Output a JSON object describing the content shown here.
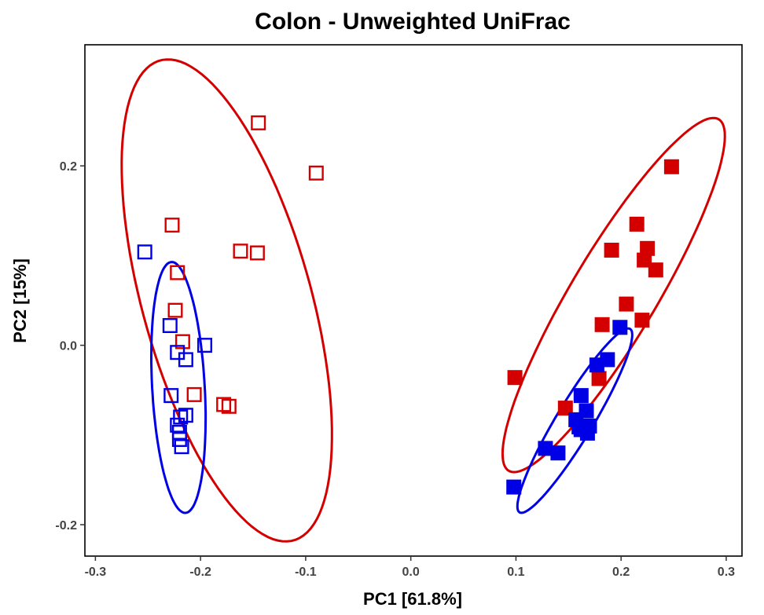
{
  "chart_data": {
    "type": "scatter",
    "title": "Colon - Unweighted UniFrac",
    "xlabel": "PC1  [61.8%]",
    "ylabel": "PC2  [15%]",
    "xlim": [
      -0.31,
      0.315
    ],
    "ylim": [
      -0.235,
      0.335
    ],
    "x_ticks": [
      -0.3,
      -0.2,
      -0.1,
      0.0,
      0.1,
      0.2,
      0.3
    ],
    "x_tick_labels": [
      "-0.3",
      "-0.2",
      "-0.1",
      "0.0",
      "0.1",
      "0.2",
      "0.3"
    ],
    "y_ticks": [
      -0.2,
      0.0,
      0.2
    ],
    "y_tick_labels": [
      "-0.2",
      "0.0",
      "0.2"
    ],
    "grid": false,
    "legend": "none",
    "colors": {
      "red": "#d40000",
      "blue": "#0000e6"
    },
    "series": [
      {
        "color": "#d40000",
        "marker": "open-square",
        "x": [
          -0.145,
          -0.09,
          -0.227,
          -0.162,
          -0.146,
          -0.222,
          -0.224,
          -0.217,
          -0.206,
          -0.178,
          -0.173
        ],
        "y": [
          0.248,
          0.192,
          0.134,
          0.105,
          0.103,
          0.081,
          0.039,
          0.004,
          -0.055,
          -0.066,
          -0.068
        ]
      },
      {
        "color": "#0000e6",
        "marker": "open-square",
        "x": [
          -0.253,
          -0.229,
          -0.222,
          -0.214,
          -0.196,
          -0.228,
          -0.214,
          -0.219,
          -0.222,
          -0.22,
          -0.22,
          -0.218
        ],
        "y": [
          0.104,
          0.022,
          -0.008,
          -0.016,
          0.0,
          -0.056,
          -0.078,
          -0.08,
          -0.089,
          -0.097,
          -0.105,
          -0.113
        ]
      },
      {
        "color": "#d40000",
        "marker": "filled-square",
        "x": [
          0.248,
          0.215,
          0.191,
          0.225,
          0.222,
          0.233,
          0.205,
          0.22,
          0.182,
          0.179,
          0.099,
          0.147
        ],
        "y": [
          0.199,
          0.135,
          0.106,
          0.108,
          0.095,
          0.084,
          0.046,
          0.028,
          0.023,
          -0.037,
          -0.036,
          -0.07
        ]
      },
      {
        "color": "#0000e6",
        "marker": "filled-square",
        "x": [
          0.199,
          0.187,
          0.177,
          0.162,
          0.167,
          0.157,
          0.17,
          0.16,
          0.162,
          0.168,
          0.128,
          0.14,
          0.098
        ],
        "y": [
          0.02,
          -0.016,
          -0.022,
          -0.056,
          -0.073,
          -0.083,
          -0.09,
          -0.091,
          -0.094,
          -0.098,
          -0.115,
          -0.12,
          -0.158
        ]
      }
    ],
    "ellipses": [
      {
        "color": "#d40000",
        "cx": -0.175,
        "cy": 0.05,
        "rx": 0.081,
        "ry": 0.275,
        "angle_deg": 12.9
      },
      {
        "color": "#0000e6",
        "cx": -0.221,
        "cy": -0.047,
        "rx": 0.025,
        "ry": 0.14,
        "angle_deg": 2.7
      },
      {
        "color": "#d40000",
        "cx": 0.193,
        "cy": 0.056,
        "rx": 0.042,
        "ry": 0.22,
        "angle_deg": -26.7
      },
      {
        "color": "#0000e6",
        "cx": 0.156,
        "cy": -0.084,
        "rx": 0.018,
        "ry": 0.115,
        "angle_deg": -27
      }
    ]
  }
}
